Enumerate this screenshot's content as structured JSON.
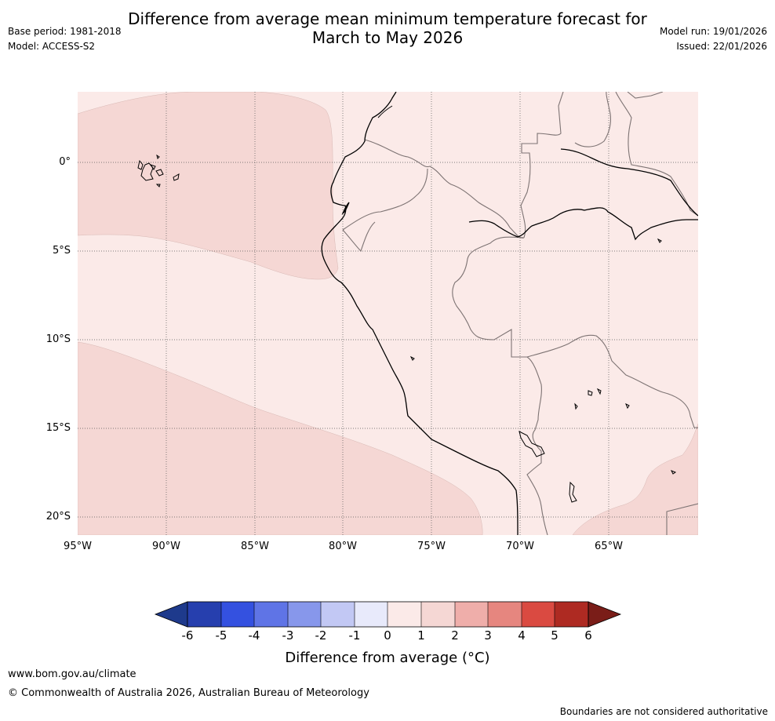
{
  "title": {
    "line1": "Difference from average mean minimum temperature forecast for",
    "line2": "March to May 2026"
  },
  "meta": {
    "base_period": "Base period: 1981-2018",
    "model": "Model: ACCESS-S2",
    "model_run": "Model run: 19/01/2026",
    "issued": "Issued: 22/01/2026"
  },
  "map": {
    "lon_labels": [
      "95°W",
      "90°W",
      "85°W",
      "80°W",
      "75°W",
      "70°W",
      "65°W"
    ],
    "lat_labels": [
      "0°",
      "5°S",
      "10°S",
      "15°S",
      "20°S"
    ],
    "anomaly_classes": [
      {
        "range": "0 to 1",
        "color": "#fbeae8"
      },
      {
        "range": "1 to 2",
        "color": "#f5d7d4"
      }
    ],
    "coastline_color": "#000000",
    "border_color": "#7d7373"
  },
  "colorbar": {
    "title": "Difference from average (°C)",
    "ticks": [
      "-6",
      "-5",
      "-4",
      "-3",
      "-2",
      "-1",
      "0",
      "1",
      "2",
      "3",
      "4",
      "5",
      "6"
    ],
    "colors": [
      "#1e3a8c",
      "#263fae",
      "#3451e0",
      "#5f74e6",
      "#8797eb",
      "#c2c8f4",
      "#e8eafb",
      "#fbeae8",
      "#f5d7d4",
      "#efaeaa",
      "#e6867f",
      "#da4a41",
      "#ae2a22",
      "#7a1d18"
    ]
  },
  "footer": {
    "url": "www.bom.gov.au/climate",
    "copyright": "© Commonwealth of Australia 2026, Australian Bureau of Meteorology",
    "disclaimer": "Boundaries are not considered authoritative"
  }
}
